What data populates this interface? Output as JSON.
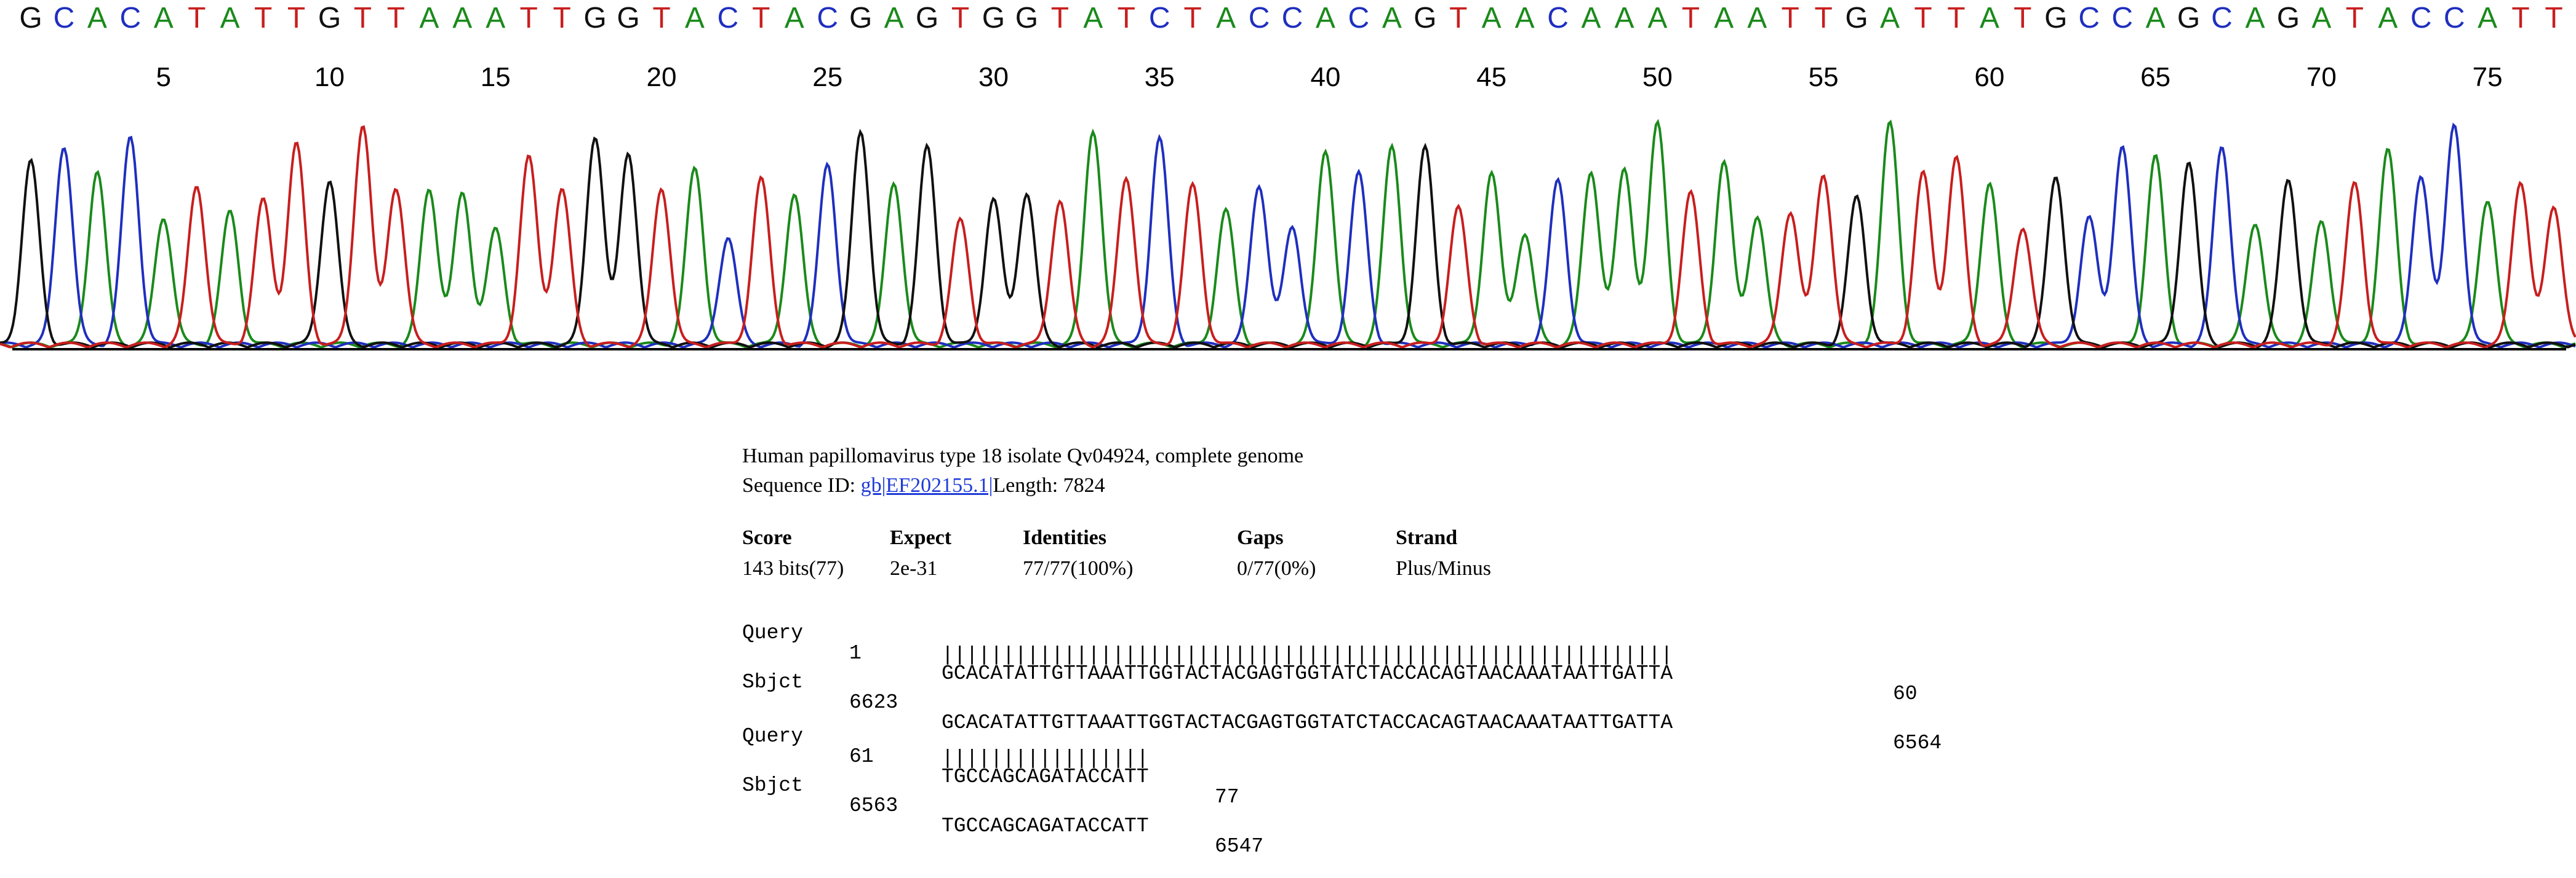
{
  "sequence_trace": {
    "base_calls": "GCACATATTGTTAAATTGGTACTACGAGTGGTATCTACCACAGTAACAAATAATTGATTATGCCAGCAGATACCATT",
    "position_labels": [
      "5",
      "10",
      "15",
      "20",
      "25",
      "30",
      "35",
      "40",
      "45",
      "50",
      "55",
      "60",
      "65",
      "70",
      "75"
    ],
    "colors": {
      "A": "#1a8a1a",
      "C": "#1f2fbf",
      "G": "#111111",
      "T": "#c81e1e"
    }
  },
  "blast_hit": {
    "title": "Human papillomavirus type 18 isolate Qv04924, complete genome",
    "sequence_id_label": "Sequence ID:",
    "sequence_id_link": "gb|EF202155.1|",
    "length_text": "Length: 7824",
    "stats_headers": [
      "Score",
      "Expect",
      "Identities",
      "Gaps",
      "Strand"
    ],
    "stats_values": [
      "143 bits(77)",
      "2e-31",
      "77/77(100%)",
      "0/77(0%)",
      "Plus/Minus"
    ],
    "alignment": [
      {
        "query_label": "Query",
        "query_start": "1",
        "query_seq": "GCACATATTGTTAAATTGGTACTACGAGTGGTATCTACCACAGTAACAAATAATTGATTA",
        "query_end": "60",
        "match_line": "||||||||||||||||||||||||||||||||||||||||||||||||||||||||||||",
        "sbjct_label": "Sbjct",
        "sbjct_start": "6623",
        "sbjct_seq": "GCACATATTGTTAAATTGGTACTACGAGTGGTATCTACCACAGTAACAAATAATTGATTA",
        "sbjct_end": "6564"
      },
      {
        "query_label": "Query",
        "query_start": "61",
        "query_seq": "TGCCAGCAGATACCATT",
        "query_end": "77",
        "match_line": "|||||||||||||||||",
        "sbjct_label": "Sbjct",
        "sbjct_start": "6563",
        "sbjct_seq": "TGCCAGCAGATACCATT",
        "sbjct_end": "6547"
      }
    ]
  }
}
